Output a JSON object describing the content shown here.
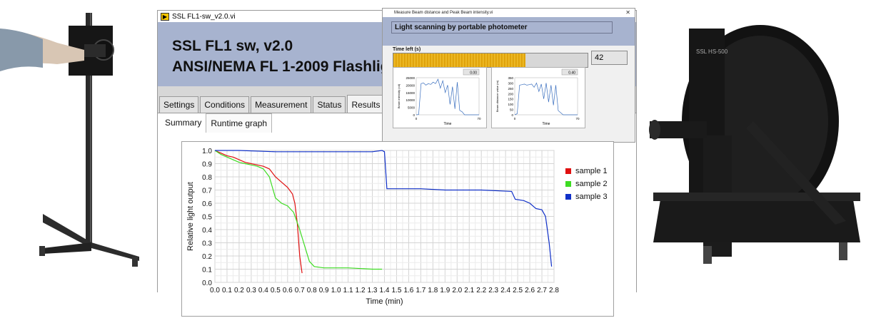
{
  "main_window": {
    "title": "SSL FL1-sw_v2.0.vi",
    "header_line1": "SSL FL1 sw, v2.0",
    "header_line2": "ANSI/NEMA FL 1-2009  Flashlig",
    "tabs": [
      {
        "label": "Settings"
      },
      {
        "label": "Conditions"
      },
      {
        "label": "Measurement"
      },
      {
        "label": "Status"
      },
      {
        "label": "Results",
        "active": true
      }
    ],
    "subtabs": [
      {
        "label": "Summary"
      },
      {
        "label": "Runtime graph",
        "active": true
      }
    ]
  },
  "popup": {
    "title": "Measure Beam distance and Peak Beam intensity.vi",
    "close_icon": "close-icon",
    "heading": "Light scanning by portable photometer",
    "time_left_label": "Time left (s)",
    "time_left_value": "42",
    "progress_fraction": 0.68,
    "graph_left": {
      "readout": "0.00",
      "ylabel": "Beam intensity (cd)",
      "xlabel": "Time",
      "y_ticks": [
        "25000",
        "20000",
        "15000",
        "10000",
        "5000",
        "0"
      ],
      "x_ticks": [
        "0",
        "70"
      ]
    },
    "graph_right": {
      "readout": "0.40",
      "ylabel": "Beam distance value (m)",
      "xlabel": "Time",
      "y_ticks": [
        "350",
        "300",
        "250",
        "200",
        "150",
        "100",
        "50",
        "0"
      ],
      "x_ticks": [
        "0",
        "70"
      ]
    }
  },
  "chart_data": {
    "type": "line",
    "xlabel": "Time (min)",
    "ylabel": "Relative light output",
    "xlim": [
      0.0,
      2.8
    ],
    "ylim": [
      0.0,
      1.0
    ],
    "x_ticks": [
      "0.0",
      "0.1",
      "0.2",
      "0.3",
      "0.4",
      "0.5",
      "0.6",
      "0.7",
      "0.8",
      "0.9",
      "1.0",
      "1.1",
      "1.2",
      "1.3",
      "1.4",
      "1.5",
      "1.6",
      "1.7",
      "1.8",
      "1.9",
      "2.0",
      "2.1",
      "2.2",
      "2.3",
      "2.4",
      "2.5",
      "2.6",
      "2.7",
      "2.8"
    ],
    "y_ticks": [
      "1.0",
      "0.9",
      "0.8",
      "0.7",
      "0.6",
      "0.5",
      "0.4",
      "0.3",
      "0.2",
      "0.1",
      "0.0"
    ],
    "grid": true,
    "legend_position": "right",
    "series": [
      {
        "name": "sample 1",
        "color": "#e01010",
        "points": [
          [
            0,
            1.0
          ],
          [
            0.05,
            0.98
          ],
          [
            0.1,
            0.96
          ],
          [
            0.15,
            0.95
          ],
          [
            0.2,
            0.93
          ],
          [
            0.25,
            0.91
          ],
          [
            0.3,
            0.9
          ],
          [
            0.35,
            0.89
          ],
          [
            0.4,
            0.88
          ],
          [
            0.45,
            0.86
          ],
          [
            0.5,
            0.8
          ],
          [
            0.55,
            0.76
          ],
          [
            0.6,
            0.72
          ],
          [
            0.64,
            0.67
          ],
          [
            0.66,
            0.6
          ],
          [
            0.68,
            0.45
          ],
          [
            0.7,
            0.2
          ],
          [
            0.72,
            0.07
          ]
        ]
      },
      {
        "name": "sample 2",
        "color": "#3ddc22",
        "points": [
          [
            0,
            1.0
          ],
          [
            0.05,
            0.97
          ],
          [
            0.1,
            0.95
          ],
          [
            0.15,
            0.93
          ],
          [
            0.2,
            0.91
          ],
          [
            0.25,
            0.9
          ],
          [
            0.3,
            0.89
          ],
          [
            0.35,
            0.88
          ],
          [
            0.4,
            0.86
          ],
          [
            0.45,
            0.8
          ],
          [
            0.5,
            0.64
          ],
          [
            0.55,
            0.6
          ],
          [
            0.6,
            0.58
          ],
          [
            0.65,
            0.53
          ],
          [
            0.7,
            0.4
          ],
          [
            0.75,
            0.25
          ],
          [
            0.78,
            0.16
          ],
          [
            0.82,
            0.12
          ],
          [
            0.9,
            0.11
          ],
          [
            1.1,
            0.11
          ],
          [
            1.3,
            0.1
          ],
          [
            1.38,
            0.1
          ]
        ]
      },
      {
        "name": "sample 3",
        "color": "#1030c8",
        "points": [
          [
            0,
            1.0
          ],
          [
            0.2,
            1.0
          ],
          [
            0.5,
            0.99
          ],
          [
            0.8,
            0.99
          ],
          [
            1.0,
            0.99
          ],
          [
            1.2,
            0.99
          ],
          [
            1.3,
            0.99
          ],
          [
            1.38,
            1.0
          ],
          [
            1.4,
            0.99
          ],
          [
            1.42,
            0.71
          ],
          [
            1.5,
            0.71
          ],
          [
            1.7,
            0.71
          ],
          [
            1.9,
            0.7
          ],
          [
            2.0,
            0.7
          ],
          [
            2.2,
            0.7
          ],
          [
            2.45,
            0.69
          ],
          [
            2.48,
            0.63
          ],
          [
            2.55,
            0.62
          ],
          [
            2.6,
            0.6
          ],
          [
            2.65,
            0.56
          ],
          [
            2.7,
            0.55
          ],
          [
            2.73,
            0.5
          ],
          [
            2.76,
            0.3
          ],
          [
            2.78,
            0.12
          ]
        ]
      }
    ]
  }
}
